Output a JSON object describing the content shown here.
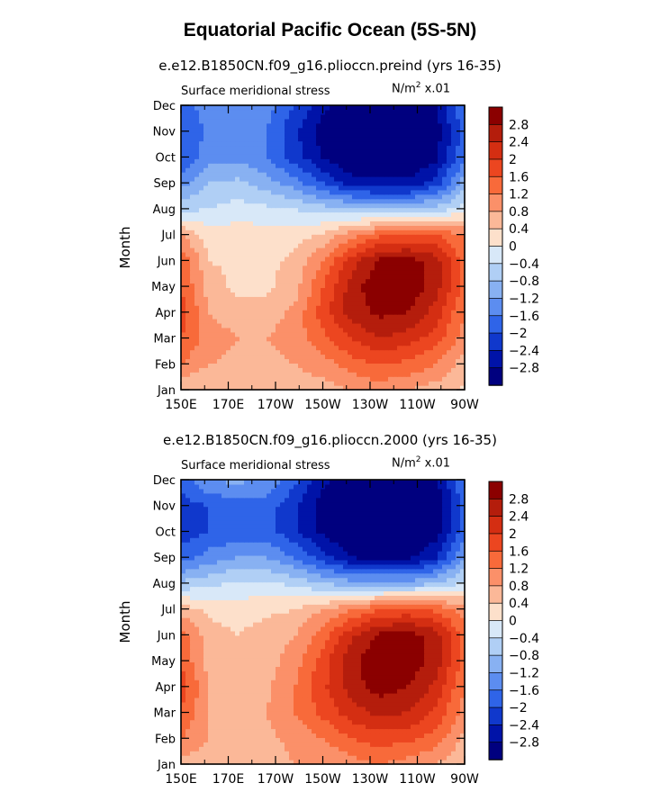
{
  "title": "Equatorial Pacific Ocean (5S-5N)",
  "chart_data": [
    {
      "type": "heatmap",
      "title": "e.e12.B1850CN.f09_g16.plioccn.preind (yrs 16-35)",
      "subtitle_left": "Surface meridional stress",
      "units": {
        "base": "N/m",
        "exp": "2",
        "scale": " x.01"
      },
      "ylabel": "Month",
      "x_ticks": [
        "150E",
        "170E",
        "170W",
        "150W",
        "130W",
        "110W",
        "90W"
      ],
      "y_ticks": [
        "Jan",
        "Feb",
        "Mar",
        "Apr",
        "May",
        "Jun",
        "Jul",
        "Aug",
        "Sep",
        "Oct",
        "Nov",
        "Dec"
      ],
      "x_range": [
        "150E",
        "90W"
      ],
      "colorbar": {
        "levels": [
          "2.8",
          "2.4",
          "2",
          "1.6",
          "1.2",
          "0.8",
          "0.4",
          "0",
          "-0.4",
          "-0.8",
          "-1.2",
          "-1.6",
          "-2",
          "-2.4",
          "-2.8"
        ],
        "colors": [
          "#8b0000",
          "#b41d0c",
          "#d42e12",
          "#ec4620",
          "#f86a3a",
          "#fb9069",
          "#fbb898",
          "#fde0cb",
          "#d8e8f8",
          "#b0cff5",
          "#88b1f2",
          "#5c8df0",
          "#2f64e8",
          "#1038cc",
          "#0013a8",
          "#00007f"
        ]
      },
      "grid": [
        [
          0.4,
          0.4,
          0.4,
          0.4,
          0.6,
          0.6,
          0.8,
          1.0,
          0.8,
          0.6,
          0.3
        ],
        [
          1.2,
          0.8,
          0.7,
          0.6,
          0.8,
          1.0,
          1.4,
          1.6,
          1.5,
          1.2,
          0.6
        ],
        [
          1.6,
          1.0,
          0.8,
          0.8,
          1.0,
          1.5,
          2.0,
          2.4,
          2.2,
          1.8,
          1.0
        ],
        [
          1.8,
          0.8,
          0.6,
          0.6,
          0.9,
          1.8,
          2.6,
          2.9,
          2.8,
          2.2,
          1.2
        ],
        [
          1.6,
          0.6,
          0.3,
          0.3,
          0.6,
          1.6,
          2.6,
          3.1,
          3.1,
          2.6,
          1.4
        ],
        [
          1.6,
          0.4,
          0.3,
          0.3,
          0.5,
          1.2,
          2.2,
          2.9,
          3.0,
          2.6,
          1.4
        ],
        [
          0.8,
          0.2,
          0.2,
          0.2,
          0.2,
          0.5,
          1.0,
          1.5,
          1.6,
          1.6,
          1.2
        ],
        [
          -0.5,
          -0.4,
          -0.2,
          -0.3,
          -0.4,
          -0.6,
          -0.7,
          -0.8,
          -0.8,
          -0.6,
          -0.2
        ],
        [
          -1.4,
          -0.8,
          -0.7,
          -1.0,
          -1.4,
          -2.0,
          -2.6,
          -2.7,
          -2.7,
          -2.2,
          -1.0
        ],
        [
          -2.0,
          -1.3,
          -1.3,
          -1.6,
          -2.2,
          -2.8,
          -3.2,
          -3.3,
          -3.3,
          -2.9,
          -1.6
        ],
        [
          -2.0,
          -1.5,
          -1.4,
          -1.6,
          -2.3,
          -3.0,
          -3.3,
          -3.3,
          -3.3,
          -3.0,
          -1.8
        ],
        [
          -1.8,
          -1.4,
          -1.3,
          -1.4,
          -2.0,
          -2.7,
          -3.1,
          -3.2,
          -3.2,
          -2.8,
          -1.6
        ]
      ]
    },
    {
      "type": "heatmap",
      "title": "e.e12.B1850CN.f09_g16.plioccn.2000 (yrs 16-35)",
      "subtitle_left": "Surface meridional stress",
      "units": {
        "base": "N/m",
        "exp": "2",
        "scale": " x.01"
      },
      "ylabel": "Month",
      "x_ticks": [
        "150E",
        "170E",
        "170W",
        "150W",
        "130W",
        "110W",
        "90W"
      ],
      "y_ticks": [
        "Jan",
        "Feb",
        "Mar",
        "Apr",
        "May",
        "Jun",
        "Jul",
        "Aug",
        "Sep",
        "Oct",
        "Nov",
        "Dec"
      ],
      "x_range": [
        "150E",
        "90W"
      ],
      "colorbar": {
        "levels": [
          "2.8",
          "2.4",
          "2",
          "1.6",
          "1.2",
          "0.8",
          "0.4",
          "0",
          "-0.4",
          "-0.8",
          "-1.2",
          "-1.6",
          "-2",
          "-2.4",
          "-2.8"
        ],
        "colors": [
          "#8b0000",
          "#b41d0c",
          "#d42e12",
          "#ec4620",
          "#f86a3a",
          "#fb9069",
          "#fbb898",
          "#fde0cb",
          "#d8e8f8",
          "#b0cff5",
          "#88b1f2",
          "#5c8df0",
          "#2f64e8",
          "#1038cc",
          "#0013a8",
          "#00007f"
        ]
      },
      "grid": [
        [
          0.6,
          0.6,
          0.6,
          0.6,
          0.8,
          0.8,
          1.0,
          1.2,
          1.0,
          0.8,
          0.4
        ],
        [
          1.2,
          0.8,
          0.7,
          0.7,
          0.9,
          1.2,
          1.6,
          1.8,
          1.7,
          1.4,
          0.7
        ],
        [
          1.6,
          0.8,
          0.7,
          0.8,
          1.2,
          1.7,
          2.2,
          2.5,
          2.4,
          1.9,
          1.0
        ],
        [
          1.8,
          0.8,
          0.6,
          0.7,
          1.2,
          1.9,
          2.6,
          3.0,
          2.8,
          2.3,
          1.2
        ],
        [
          1.6,
          0.6,
          0.5,
          0.6,
          1.0,
          1.8,
          2.7,
          3.1,
          3.1,
          2.6,
          1.4
        ],
        [
          1.4,
          0.6,
          0.4,
          0.6,
          0.8,
          1.4,
          2.3,
          2.9,
          3.0,
          2.6,
          1.4
        ],
        [
          0.6,
          0.3,
          0.2,
          0.3,
          0.4,
          0.8,
          1.2,
          1.6,
          1.7,
          1.5,
          1.0
        ],
        [
          -0.7,
          -0.5,
          -0.3,
          -0.3,
          -0.5,
          -0.8,
          -1.0,
          -1.0,
          -1.0,
          -0.8,
          -0.3
        ],
        [
          -1.8,
          -1.4,
          -1.2,
          -1.2,
          -1.6,
          -2.2,
          -2.8,
          -2.9,
          -2.9,
          -2.4,
          -1.2
        ],
        [
          -2.2,
          -2.0,
          -1.8,
          -1.8,
          -2.3,
          -2.9,
          -3.2,
          -3.3,
          -3.3,
          -3.0,
          -1.7
        ],
        [
          -2.2,
          -2.0,
          -1.8,
          -1.8,
          -2.3,
          -3.0,
          -3.3,
          -3.4,
          -3.4,
          -3.1,
          -1.8
        ],
        [
          -1.8,
          -1.2,
          -1.1,
          -1.3,
          -1.9,
          -2.7,
          -3.1,
          -3.2,
          -3.2,
          -2.9,
          -1.6
        ]
      ]
    }
  ]
}
